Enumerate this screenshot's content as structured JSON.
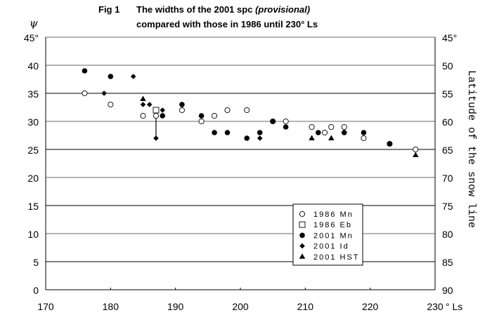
{
  "chart_data": {
    "type": "scatter",
    "title_prefix": "Fig 1",
    "title_line1": "The widths of the 2001 spc",
    "title_italic": "(provisional)",
    "title_line2": "compared with those in 1986 until 230° Ls",
    "ylabel": "ψ",
    "ylabel_right": "Latitude of the snow line",
    "xlabel": "° Ls",
    "xlim": [
      170,
      230
    ],
    "ylim": [
      0,
      45
    ],
    "x_ticks": [
      "170",
      "180",
      "190",
      "200",
      "210",
      "220",
      "230"
    ],
    "y_ticks": [
      "0",
      "5",
      "10",
      "15",
      "20",
      "25",
      "30",
      "35",
      "40",
      "45°"
    ],
    "y_right_ticks": [
      "90",
      "85",
      "80",
      "75",
      "70",
      "65",
      "60",
      "55",
      "50",
      "45°"
    ],
    "grid": true,
    "legend_position": "bottom-right",
    "series": [
      {
        "name": "1986 Mn",
        "marker": "open-circle",
        "points": [
          [
            176,
            35
          ],
          [
            180,
            33
          ],
          [
            185,
            31
          ],
          [
            187,
            31
          ],
          [
            191,
            32
          ],
          [
            194,
            30
          ],
          [
            196,
            31
          ],
          [
            198,
            32
          ],
          [
            201,
            32
          ],
          [
            205,
            30
          ],
          [
            207,
            30
          ],
          [
            211,
            29
          ],
          [
            213,
            28
          ],
          [
            214,
            29
          ],
          [
            216,
            29
          ],
          [
            219,
            27
          ],
          [
            223,
            26
          ],
          [
            227,
            25
          ]
        ]
      },
      {
        "name": "1986 Eb",
        "marker": "open-square",
        "points": [
          [
            187,
            32
          ]
        ]
      },
      {
        "name": "2001 Mn",
        "marker": "filled-circle",
        "points": [
          [
            176,
            39
          ],
          [
            180,
            38
          ],
          [
            188,
            31
          ],
          [
            191,
            33
          ],
          [
            194,
            31
          ],
          [
            196,
            28
          ],
          [
            198,
            28
          ],
          [
            201,
            27
          ],
          [
            203,
            28
          ],
          [
            205,
            30
          ],
          [
            207,
            29
          ],
          [
            212,
            28
          ],
          [
            216,
            28
          ],
          [
            219,
            28
          ],
          [
            223,
            26
          ]
        ]
      },
      {
        "name": "2001 Id",
        "marker": "filled-diamond",
        "points": [
          [
            179,
            35
          ],
          [
            183.5,
            38
          ],
          [
            185,
            33
          ],
          [
            186,
            33
          ],
          [
            187,
            27
          ],
          [
            188,
            32
          ],
          [
            203,
            27
          ]
        ]
      },
      {
        "name": "2001 HST",
        "marker": "filled-triangle",
        "points": [
          [
            185,
            34
          ],
          [
            211,
            27
          ],
          [
            214,
            27
          ],
          [
            227,
            24
          ]
        ]
      }
    ],
    "error_bars": [
      {
        "x": 187,
        "y_from": 32,
        "y_to": 27
      }
    ]
  }
}
